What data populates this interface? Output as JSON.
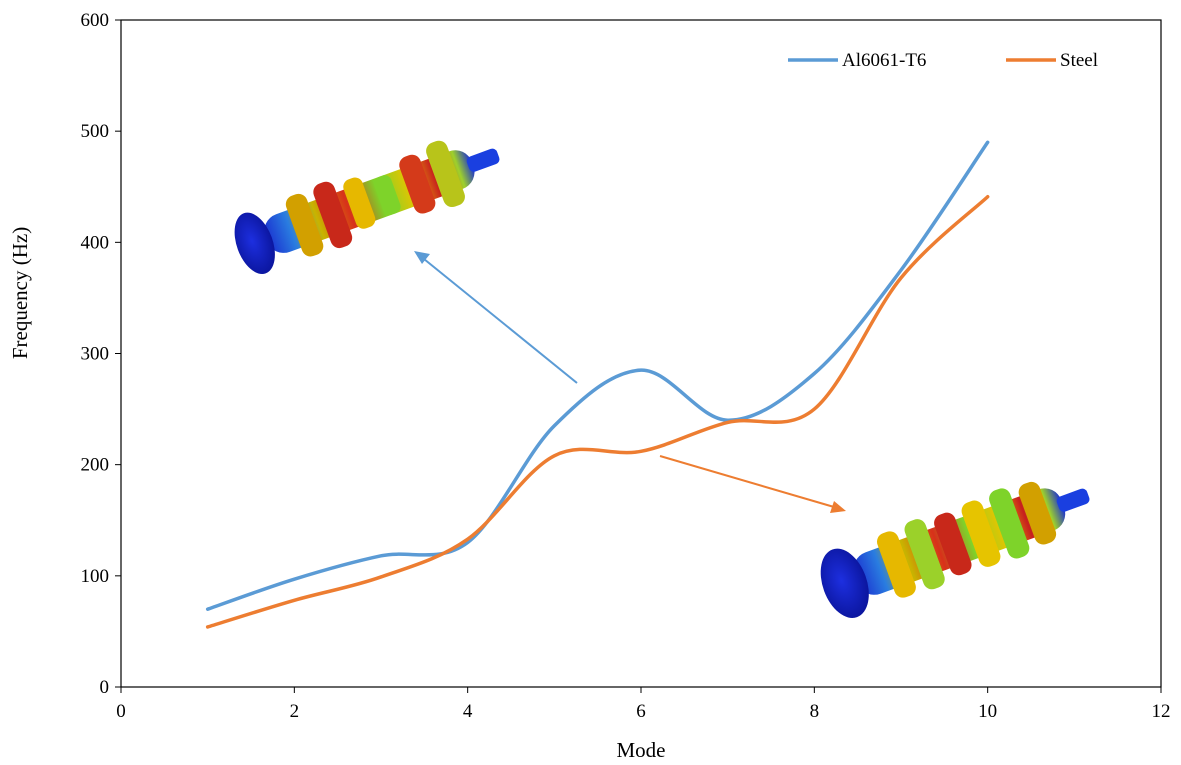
{
  "chart_data": {
    "type": "line",
    "title": "",
    "xlabel": "Mode",
    "ylabel": "Frequency (Hz)",
    "xlim": [
      0,
      12
    ],
    "ylim": [
      0,
      600
    ],
    "xticks": [
      "0",
      "2",
      "4",
      "6",
      "8",
      "10",
      "12"
    ],
    "yticks": [
      "0",
      "100",
      "200",
      "300",
      "400",
      "500",
      "600"
    ],
    "grid": false,
    "legend_position": "top-right",
    "series": [
      {
        "name": "Al6061-T6",
        "color": "#5B9BD5",
        "x": [
          1,
          2,
          3,
          4,
          5,
          6,
          7,
          8,
          9,
          10
        ],
        "y": [
          70,
          97,
          118,
          130,
          235,
          285,
          240,
          282,
          375,
          490
        ]
      },
      {
        "name": "Steel",
        "color": "#ED7D31",
        "x": [
          1,
          2,
          3,
          4,
          5,
          6,
          7,
          8,
          9,
          10
        ],
        "y": [
          54,
          78,
          99,
          133,
          208,
          212,
          238,
          250,
          368,
          441
        ]
      }
    ],
    "annotations": [
      {
        "type": "arrow",
        "color": "#5B9BD5",
        "icon": "crankshaft-mode-shape-icon"
      },
      {
        "type": "arrow",
        "color": "#ED7D31",
        "icon": "crankshaft-mode-shape-icon"
      }
    ]
  }
}
